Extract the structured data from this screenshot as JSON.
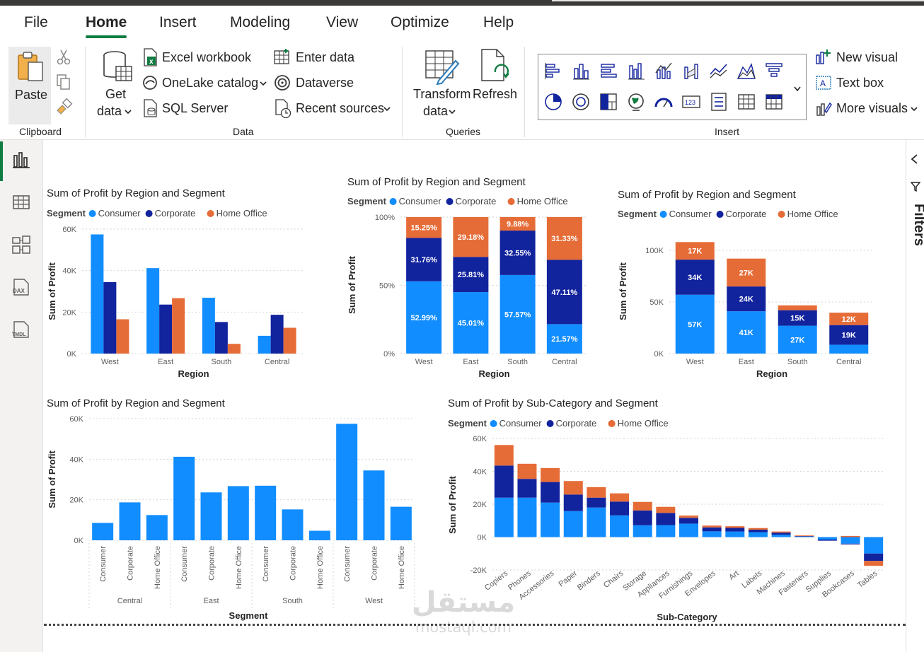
{
  "tabs": [
    "File",
    "Home",
    "Insert",
    "Modeling",
    "View",
    "Optimize",
    "Help"
  ],
  "active_tab": "Home",
  "ribbon": {
    "clipboard": {
      "paste": "Paste",
      "group": "Clipboard"
    },
    "data": {
      "get_data_1": "Get",
      "get_data_2": "data",
      "excel": "Excel workbook",
      "onelake": "OneLake catalog",
      "sql": "SQL Server",
      "enter": "Enter data",
      "dataverse": "Dataverse",
      "recent": "Recent sources",
      "group": "Data"
    },
    "queries": {
      "transform_1": "Transform",
      "transform_2": "data",
      "refresh": "Refresh",
      "group": "Queries"
    },
    "insert": {
      "new_visual": "New visual",
      "text_box": "Text box",
      "more_visuals": "More visuals",
      "group": "Insert"
    }
  },
  "filters_label": "Filters",
  "colors": {
    "consumer": "#118dff",
    "corporate": "#12239e",
    "home_office": "#e66c37",
    "accent": "#107c41"
  },
  "legend": {
    "title": "Segment",
    "items": [
      "Consumer",
      "Corporate",
      "Home Office"
    ]
  },
  "watermark": {
    "arabic": "مستقل",
    "latin": "mostaql.com"
  },
  "chart_data": [
    {
      "type": "bar",
      "title": "Sum of Profit by Region and Segment",
      "xlabel": "Region",
      "ylabel": "Sum of Profit",
      "categories": [
        "West",
        "East",
        "South",
        "Central"
      ],
      "yticks": [
        "0K",
        "20K",
        "40K",
        "60K"
      ],
      "ylim": [
        0,
        60000
      ],
      "series": [
        {
          "name": "Consumer",
          "values": [
            57450,
            41190,
            26910,
            8560
          ]
        },
        {
          "name": "Corporate",
          "values": [
            34440,
            23620,
            15220,
            18700
          ]
        },
        {
          "name": "Home Office",
          "values": [
            16530,
            26710,
            4690,
            12440
          ]
        }
      ]
    },
    {
      "type": "bar",
      "stacking": "100%",
      "title": "Sum of Profit by Region and Segment",
      "xlabel": "Region",
      "ylabel": "Sum of Profit",
      "categories": [
        "West",
        "East",
        "South",
        "Central"
      ],
      "yticks": [
        "0%",
        "50%",
        "100%"
      ],
      "series": [
        {
          "name": "Consumer",
          "values": [
            52.99,
            45.01,
            57.57,
            21.57
          ],
          "labels": [
            "52.99%",
            "45.01%",
            "57.57%",
            "21.57%"
          ]
        },
        {
          "name": "Corporate",
          "values": [
            31.76,
            25.81,
            32.55,
            47.11
          ],
          "labels": [
            "31.76%",
            "25.81%",
            "32.55%",
            "47.11%"
          ]
        },
        {
          "name": "Home Office",
          "values": [
            15.25,
            29.18,
            9.88,
            31.33
          ],
          "labels": [
            "15.25%",
            "29.18%",
            "9.88%",
            "31.33%"
          ]
        }
      ]
    },
    {
      "type": "bar",
      "stacking": "stacked",
      "title": "Sum of Profit by Region and Segment",
      "xlabel": "Region",
      "ylabel": "Sum of Profit",
      "categories": [
        "West",
        "East",
        "South",
        "Central"
      ],
      "yticks": [
        "0K",
        "50K",
        "100K"
      ],
      "ylim": [
        0,
        100000
      ],
      "series": [
        {
          "name": "Consumer",
          "values": [
            57000,
            41000,
            27000,
            8600
          ],
          "labels": [
            "57K",
            "41K",
            "27K",
            ""
          ]
        },
        {
          "name": "Corporate",
          "values": [
            34000,
            24000,
            15000,
            19000
          ],
          "labels": [
            "34K",
            "24K",
            "15K",
            "19K"
          ]
        },
        {
          "name": "Home Office",
          "values": [
            17000,
            27000,
            4700,
            12000
          ],
          "labels": [
            "17K",
            "27K",
            "",
            "12K"
          ]
        }
      ]
    },
    {
      "type": "bar",
      "title": "Sum of Profit by Region and Segment",
      "xlabel": "Segment",
      "ylabel": "Sum of Profit",
      "groups": [
        "Central",
        "East",
        "South",
        "West"
      ],
      "categories": [
        "Consumer",
        "Corporate",
        "Home Office",
        "Consumer",
        "Corporate",
        "Home Office",
        "Consumer",
        "Corporate",
        "Home Office",
        "Consumer",
        "Corporate",
        "Home Office"
      ],
      "values": [
        8560,
        18700,
        12440,
        41190,
        23620,
        26710,
        26910,
        15220,
        4690,
        57450,
        34440,
        16530
      ],
      "yticks": [
        "0K",
        "20K",
        "40K",
        "60K"
      ],
      "ylim": [
        0,
        60000
      ]
    },
    {
      "type": "bar",
      "stacking": "stacked",
      "title": "Sum of Profit by Sub-Category and Segment",
      "xlabel": "Sub-Category",
      "ylabel": "Sum of Profit",
      "categories": [
        "Copiers",
        "Phones",
        "Accessories",
        "Paper",
        "Binders",
        "Chairs",
        "Storage",
        "Appliances",
        "Furnishings",
        "Envelopes",
        "Art",
        "Labels",
        "Machines",
        "Fasteners",
        "Supplies",
        "Bookcases",
        "Tables"
      ],
      "yticks": [
        "-20K",
        "0K",
        "20K",
        "40K",
        "60K"
      ],
      "ylim": [
        -20000,
        60000
      ],
      "series": [
        {
          "name": "Consumer",
          "values": [
            24000,
            24000,
            21000,
            15800,
            18000,
            13200,
            7200,
            7300,
            8200,
            3500,
            3400,
            3000,
            1500,
            500,
            -1500,
            -4000,
            -10000
          ]
        },
        {
          "name": "Corporate",
          "values": [
            19500,
            11400,
            12500,
            10100,
            6000,
            8400,
            9000,
            7400,
            3500,
            2400,
            2200,
            1500,
            1200,
            300,
            -700,
            -300,
            -4500
          ]
        },
        {
          "name": "Home Office",
          "values": [
            12500,
            9200,
            8500,
            8200,
            6400,
            5000,
            5200,
            3700,
            1400,
            1100,
            1000,
            1000,
            700,
            200,
            0,
            700,
            -3000
          ]
        }
      ]
    }
  ]
}
